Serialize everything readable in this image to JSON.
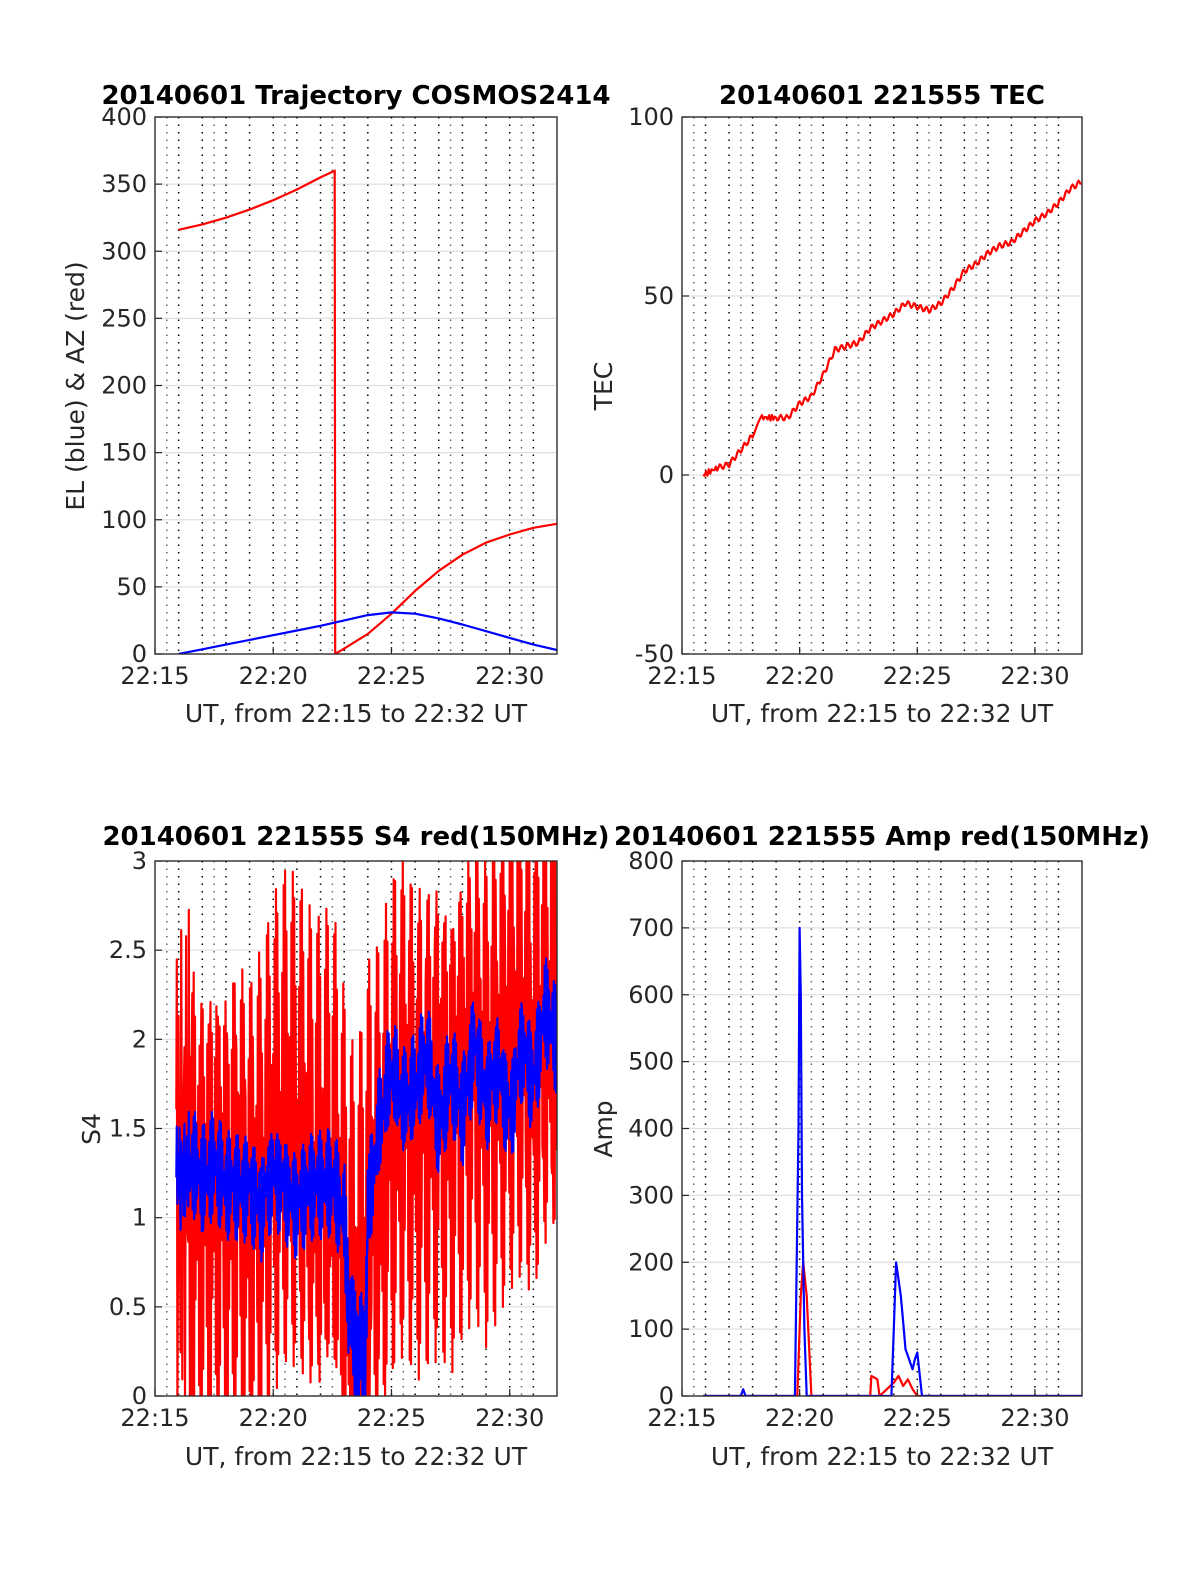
{
  "colors": {
    "red": "#ff0000",
    "blue": "#0000ff"
  },
  "panels": [
    {
      "title": "20140601 Trajectory COSMOS2414",
      "xlabel": "UT, from 22:15 to 22:32 UT",
      "ylabel": "EL (blue) & AZ (red)",
      "yticks": [
        "0",
        "50",
        "100",
        "150",
        "200",
        "250",
        "300",
        "350",
        "400"
      ],
      "xticks": [
        "22:15",
        "22:20",
        "22:25",
        "22:30"
      ]
    },
    {
      "title": "20140601 221555 TEC",
      "xlabel": "UT, from 22:15 to 22:32 UT",
      "ylabel": "TEC",
      "yticks": [
        "-50",
        "0",
        "50",
        "100"
      ],
      "xticks": [
        "22:15",
        "22:20",
        "22:25",
        "22:30"
      ]
    },
    {
      "title": "20140601 221555 S4 red(150MHz)",
      "xlabel": "UT, from 22:15 to 22:32 UT",
      "ylabel": "S4",
      "yticks": [
        "0",
        "0.5",
        "1",
        "1.5",
        "2",
        "2.5",
        "3"
      ],
      "xticks": [
        "22:15",
        "22:20",
        "22:25",
        "22:30"
      ]
    },
    {
      "title": "20140601 221555 Amp red(150MHz)",
      "xlabel": "UT, from 22:15 to 22:32 UT",
      "ylabel": "Amp",
      "yticks": [
        "0",
        "100",
        "200",
        "300",
        "400",
        "500",
        "600",
        "700",
        "800"
      ],
      "xticks": [
        "22:15",
        "22:20",
        "22:25",
        "22:30"
      ]
    }
  ],
  "chart_data": [
    {
      "type": "line",
      "title": "20140601 Trajectory COSMOS2414",
      "xlabel": "UT, from 22:15 to 22:32 UT",
      "ylabel": "EL (blue) & AZ (red)",
      "x_unit": "minutes after 22:15 UT",
      "xlim": [
        0,
        17
      ],
      "ylim": [
        0,
        400
      ],
      "grid": true,
      "series": [
        {
          "color": "red",
          "x": [
            1,
            2,
            3,
            4,
            5,
            6,
            7,
            7.6,
            7.62,
            8,
            9,
            10,
            11,
            12,
            13,
            14,
            15,
            16,
            17
          ],
          "y": [
            316,
            320,
            325,
            331,
            338,
            346,
            355,
            360,
            0,
            4,
            15,
            30,
            47,
            62,
            74,
            83,
            89,
            94,
            97
          ]
        },
        {
          "color": "blue",
          "x": [
            1,
            2,
            3,
            4,
            5,
            6,
            7,
            8,
            9,
            10,
            11,
            12,
            13,
            14,
            15,
            16,
            17
          ],
          "y": [
            0,
            3.5,
            7,
            10.5,
            14,
            17.5,
            21,
            25,
            29,
            31,
            30,
            26.5,
            22,
            17,
            12,
            7,
            3
          ]
        }
      ]
    },
    {
      "type": "line",
      "title": "20140601 221555 TEC",
      "xlabel": "UT, from 22:15 to 22:32 UT",
      "ylabel": "TEC",
      "x_unit": "minutes after 22:15 UT",
      "xlim": [
        0,
        17
      ],
      "ylim": [
        -50,
        100
      ],
      "grid": true,
      "series": [
        {
          "color": "red",
          "x": [
            0.9,
            1.5,
            2.0,
            2.5,
            3.0,
            3.4,
            4.0,
            4.5,
            5.0,
            5.5,
            6.0,
            6.5,
            7.0,
            7.5,
            8.0,
            8.5,
            9.0,
            9.5,
            10.0,
            10.5,
            11.0,
            11.5,
            12.0,
            12.5,
            13.0,
            13.5,
            14.0,
            14.5,
            15.0,
            15.5,
            16.0,
            16.5,
            17.0
          ],
          "y": [
            0,
            2,
            3,
            7,
            11,
            16,
            16,
            16,
            20,
            22,
            28,
            35,
            36,
            37,
            41,
            43,
            45,
            48,
            47,
            46,
            48,
            52,
            57,
            59,
            62,
            64,
            65,
            68,
            71,
            73,
            76,
            80,
            82
          ]
        }
      ]
    },
    {
      "type": "line",
      "title": "20140601 221555 S4 red(150MHz)",
      "xlabel": "UT, from 22:15 to 22:32 UT",
      "ylabel": "S4",
      "x_unit": "minutes after 22:15 UT",
      "xlim": [
        0,
        17
      ],
      "ylim": [
        0,
        3
      ],
      "grid": true,
      "series": [
        {
          "color": "red",
          "x": [
            0.9,
            1.5,
            2.0,
            2.5,
            3.0,
            3.5,
            4.0,
            4.5,
            5.0,
            5.5,
            6.0,
            6.5,
            7.0,
            7.5,
            8.0,
            8.5,
            9.0,
            9.5,
            10.0,
            10.5,
            11.0,
            11.5,
            12.0,
            12.5,
            13.0,
            13.5,
            14.0,
            14.5,
            15.0,
            15.5,
            16.0,
            16.5,
            17.0
          ],
          "y": [
            1.2,
            1.3,
            1.2,
            1.3,
            1.2,
            1.3,
            1.1,
            1.2,
            1.4,
            1.5,
            1.4,
            1.2,
            1.1,
            1.2,
            0.7,
            0.3,
            0.9,
            1.1,
            1.5,
            1.7,
            1.6,
            1.7,
            1.8,
            1.7,
            1.9,
            2.0,
            1.8,
            1.9,
            2.0,
            2.0,
            1.8,
            2.0,
            2.0
          ]
        },
        {
          "color": "blue",
          "x": [
            0.9,
            1.5,
            2.0,
            2.5,
            3.0,
            3.5,
            4.0,
            4.5,
            5.0,
            5.5,
            6.0,
            6.5,
            7.0,
            7.5,
            8.0,
            8.2,
            8.6,
            8.9,
            9.0,
            9.5,
            10.0,
            10.5,
            11.0,
            11.5,
            12.0,
            12.5,
            13.0,
            13.5,
            14.0,
            14.5,
            15.0,
            15.5,
            16.0,
            16.5,
            17.0
          ],
          "y": [
            1.2,
            1.3,
            1.2,
            1.3,
            1.2,
            1.2,
            1.2,
            1.1,
            1.3,
            1.2,
            1.1,
            1.2,
            1.2,
            1.2,
            1.0,
            0.5,
            0.2,
            0.3,
            1.0,
            1.5,
            1.8,
            1.6,
            1.7,
            1.9,
            1.5,
            1.8,
            1.6,
            2.0,
            1.7,
            1.9,
            1.6,
            2.0,
            1.8,
            2.2,
            2.0
          ]
        }
      ]
    },
    {
      "type": "line",
      "title": "20140601 221555 Amp red(150MHz)",
      "xlabel": "UT, from 22:15 to 22:32 UT",
      "ylabel": "Amp",
      "x_unit": "minutes after 22:15 UT",
      "xlim": [
        0,
        17
      ],
      "ylim": [
        0,
        800
      ],
      "grid": true,
      "series": [
        {
          "color": "red",
          "x": [
            0.9,
            4.9,
            5.05,
            5.15,
            5.3,
            5.5,
            8.0,
            8.05,
            8.3,
            8.4,
            9.0,
            9.2,
            9.4,
            9.6,
            9.8,
            10.0,
            10.5,
            17.0
          ],
          "y": [
            0,
            0,
            150,
            200,
            150,
            0,
            0,
            30,
            25,
            0,
            20,
            30,
            15,
            25,
            10,
            0,
            0,
            0
          ]
        },
        {
          "color": "blue",
          "x": [
            0.9,
            2.5,
            2.6,
            2.7,
            4.8,
            4.95,
            5.0,
            5.05,
            5.1,
            5.2,
            5.3,
            5.5,
            8.9,
            9.0,
            9.1,
            9.3,
            9.4,
            9.5,
            9.6,
            9.7,
            9.8,
            9.9,
            10.0,
            10.2,
            17.0
          ],
          "y": [
            0,
            0,
            10,
            0,
            0,
            400,
            700,
            600,
            300,
            100,
            0,
            0,
            0,
            100,
            200,
            150,
            110,
            70,
            60,
            50,
            40,
            55,
            65,
            0,
            0
          ]
        }
      ]
    }
  ]
}
